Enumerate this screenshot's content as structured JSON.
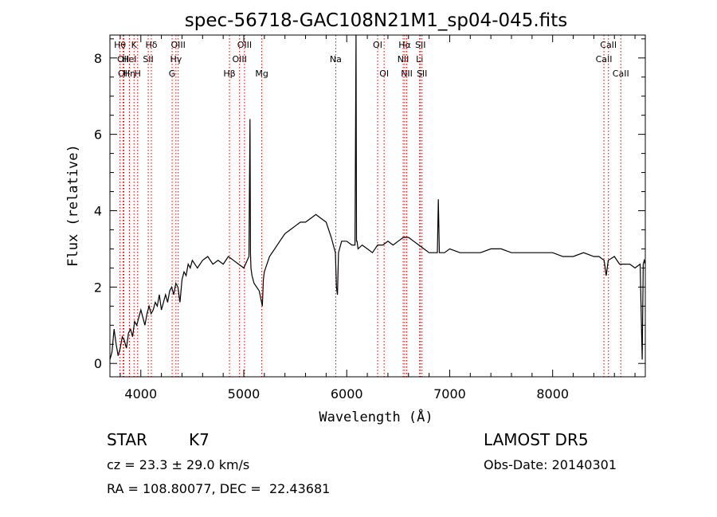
{
  "chart_data": {
    "type": "line",
    "title": "spec-56718-GAC108N21M1_sp04-045.fits",
    "xlabel": "Wavelength (Å)",
    "ylabel": "Flux (relative)",
    "xlim": [
      3700,
      8900
    ],
    "ylim": [
      -0.35,
      8.6
    ],
    "xticks": [
      {
        "v": 4000,
        "label": "4000"
      },
      {
        "v": 5000,
        "label": "5000"
      },
      {
        "v": 6000,
        "label": "6000"
      },
      {
        "v": 7000,
        "label": "7000"
      },
      {
        "v": 8000,
        "label": "8000"
      }
    ],
    "yticks": [
      {
        "v": 0,
        "label": "0"
      },
      {
        "v": 2,
        "label": "2"
      },
      {
        "v": 4,
        "label": "4"
      },
      {
        "v": 6,
        "label": "6"
      },
      {
        "v": 8,
        "label": "8"
      }
    ],
    "grid": false,
    "series": [
      {
        "x": [
          3700,
          3720,
          3740,
          3760,
          3780,
          3800,
          3820,
          3840,
          3860,
          3880,
          3900,
          3920,
          3940,
          3960,
          3980,
          4000,
          4020,
          4040,
          4060,
          4080,
          4100,
          4120,
          4140,
          4160,
          4180,
          4200,
          4220,
          4240,
          4260,
          4280,
          4300,
          4320,
          4340,
          4360,
          4380,
          4400,
          4420,
          4440,
          4460,
          4480,
          4500,
          4550,
          4600,
          4650,
          4700,
          4750,
          4800,
          4850,
          4900,
          4950,
          5000,
          5050,
          5060,
          5065,
          5070,
          5080,
          5100,
          5150,
          5180,
          5190,
          5200,
          5250,
          5300,
          5350,
          5400,
          5450,
          5500,
          5550,
          5600,
          5650,
          5700,
          5750,
          5800,
          5850,
          5890,
          5900,
          5910,
          5920,
          5950,
          6000,
          6050,
          6080,
          6090,
          6095,
          6100,
          6110,
          6150,
          6200,
          6250,
          6300,
          6350,
          6400,
          6450,
          6500,
          6550,
          6600,
          6650,
          6700,
          6750,
          6800,
          6850,
          6880,
          6890,
          6900,
          6910,
          6950,
          7000,
          7100,
          7200,
          7300,
          7400,
          7500,
          7600,
          7700,
          7800,
          7900,
          8000,
          8100,
          8200,
          8300,
          8400,
          8450,
          8500,
          8520,
          8540,
          8600,
          8650,
          8700,
          8750,
          8800,
          8850,
          8870,
          8880,
          8890,
          8900
        ],
        "y": [
          0.1,
          0.3,
          0.9,
          0.5,
          0.2,
          0.4,
          0.7,
          0.6,
          0.4,
          0.8,
          0.9,
          0.7,
          1.1,
          1.0,
          1.2,
          1.4,
          1.2,
          1.0,
          1.3,
          1.5,
          1.3,
          1.4,
          1.6,
          1.5,
          1.8,
          1.4,
          1.6,
          1.8,
          1.6,
          1.9,
          2.0,
          1.8,
          2.1,
          2.0,
          1.6,
          2.2,
          2.4,
          2.3,
          2.6,
          2.5,
          2.7,
          2.5,
          2.7,
          2.8,
          2.6,
          2.7,
          2.6,
          2.8,
          2.7,
          2.6,
          2.5,
          2.8,
          6.4,
          2.9,
          2.5,
          2.3,
          2.1,
          1.9,
          1.5,
          2.2,
          2.4,
          2.8,
          3.0,
          3.2,
          3.4,
          3.5,
          3.6,
          3.7,
          3.7,
          3.8,
          3.9,
          3.8,
          3.7,
          3.3,
          2.9,
          2.0,
          1.8,
          2.9,
          3.2,
          3.2,
          3.1,
          3.1,
          8.6,
          3.2,
          3.2,
          3.0,
          3.1,
          3.0,
          2.9,
          3.1,
          3.1,
          3.2,
          3.1,
          3.2,
          3.3,
          3.3,
          3.2,
          3.1,
          3.0,
          2.9,
          2.9,
          2.9,
          4.3,
          2.9,
          2.9,
          2.9,
          3.0,
          2.9,
          2.9,
          2.9,
          3.0,
          3.0,
          2.9,
          2.9,
          2.9,
          2.9,
          2.9,
          2.8,
          2.8,
          2.9,
          2.8,
          2.8,
          2.7,
          2.3,
          2.7,
          2.8,
          2.6,
          2.6,
          2.6,
          2.5,
          2.6,
          0.1,
          2.6,
          2.7,
          2.6
        ]
      }
    ],
    "lines": [
      {
        "x": 3798,
        "label": "Hθ",
        "row": 0
      },
      {
        "x": 3828,
        "label": "OII",
        "row": 1
      },
      {
        "x": 3836,
        "label": "OII",
        "row": 2
      },
      {
        "x": 3889,
        "label": "Hη",
        "row": 2
      },
      {
        "x": 3934,
        "label": "K",
        "row": 0
      },
      {
        "x": 3889,
        "label": "HeI",
        "row": 1
      },
      {
        "x": 3969,
        "label": "H",
        "row": 2
      },
      {
        "x": 4102,
        "label": "Hδ",
        "row": 0
      },
      {
        "x": 4072,
        "label": "SII",
        "row": 1
      },
      {
        "x": 4341,
        "label": "Hγ",
        "row": 1
      },
      {
        "x": 4304,
        "label": "G",
        "row": 2
      },
      {
        "x": 4363,
        "label": "OIII",
        "row": 0
      },
      {
        "x": 4861,
        "label": "Hβ",
        "row": 2
      },
      {
        "x": 4959,
        "label": "OIII",
        "row": 1
      },
      {
        "x": 5007,
        "label": "OIII",
        "row": 0
      },
      {
        "x": 5175,
        "label": "Mg",
        "row": 2
      },
      {
        "x": 5893,
        "label": "Na",
        "row": 1
      },
      {
        "x": 6300,
        "label": "OI",
        "row": 0
      },
      {
        "x": 6363,
        "label": "OI",
        "row": 2
      },
      {
        "x": 6548,
        "label": "NII",
        "row": 1
      },
      {
        "x": 6563,
        "label": "Hα",
        "row": 0
      },
      {
        "x": 6583,
        "label": "NII",
        "row": 2
      },
      {
        "x": 6708,
        "label": "Li",
        "row": 1
      },
      {
        "x": 6716,
        "label": "SII",
        "row": 0
      },
      {
        "x": 6731,
        "label": "SII",
        "row": 2
      },
      {
        "x": 8498,
        "label": "CaII",
        "row": 1
      },
      {
        "x": 8542,
        "label": "CaII",
        "row": 0
      },
      {
        "x": 8662,
        "label": "CaII",
        "row": 2
      }
    ]
  },
  "info": {
    "class": "STAR",
    "subclass": "K7",
    "survey": "LAMOST DR5",
    "cz": "cz = 23.3 ± 29.0 km/s",
    "obs_date": "Obs-Date: 20140301",
    "coords": "RA = 108.80077, DEC =  22.43681"
  }
}
